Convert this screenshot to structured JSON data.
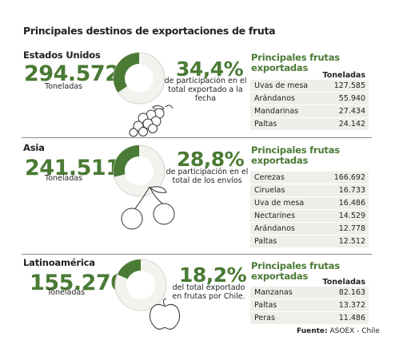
{
  "title": "Principales destinos de exportaciones de fruta",
  "unit_label": "Toneladas",
  "list_title": "Principales frutas exportadas",
  "list_col_header": "Toneladas",
  "source_label": "Fuente:",
  "source_name": "ASOEX - Chile",
  "colors": {
    "accent": "#4a7a34",
    "row_bg": "#eeefe9",
    "ring_bg": "#f2f2ee"
  },
  "icons": [
    "grapes-icon",
    "cherries-icon",
    "apple-icon"
  ],
  "chart_data": [
    {
      "type": "pie",
      "region": "Estados Unidos",
      "total": "294.572",
      "share_text": "34,4%",
      "share": 34.4,
      "share_desc": "de participación en el total exportado a la fecha",
      "fruits": [
        {
          "name": "Uvas de mesa",
          "value": "127.585"
        },
        {
          "name": "Arándanos",
          "value": "55.940"
        },
        {
          "name": "Mandarinas",
          "value": "27.434"
        },
        {
          "name": "Paltas",
          "value": "24.142"
        }
      ]
    },
    {
      "type": "pie",
      "region": "Asia",
      "total": "241.511",
      "share_text": "28,8%",
      "share": 28.8,
      "share_desc": "de participación en el total de los envíos",
      "fruits": [
        {
          "name": "Cerezas",
          "value": "166.692"
        },
        {
          "name": "Ciruelas",
          "value": "16.733"
        },
        {
          "name": "Uva de mesa",
          "value": "16.486"
        },
        {
          "name": "Nectarines",
          "value": "14.529"
        },
        {
          "name": "Arándanos",
          "value": "12.778"
        },
        {
          "name": "Paltas",
          "value": "12.512"
        }
      ]
    },
    {
      "type": "pie",
      "region": "Latinoamérica",
      "total": "155.270",
      "share_text": "18,2%",
      "share": 18.2,
      "share_desc": "del total exportado en frutas por Chile.",
      "fruits": [
        {
          "name": "Manzanas",
          "value": "82.163"
        },
        {
          "name": "Paltas",
          "value": "13.372"
        },
        {
          "name": "Peras",
          "value": "11.486"
        }
      ]
    }
  ]
}
